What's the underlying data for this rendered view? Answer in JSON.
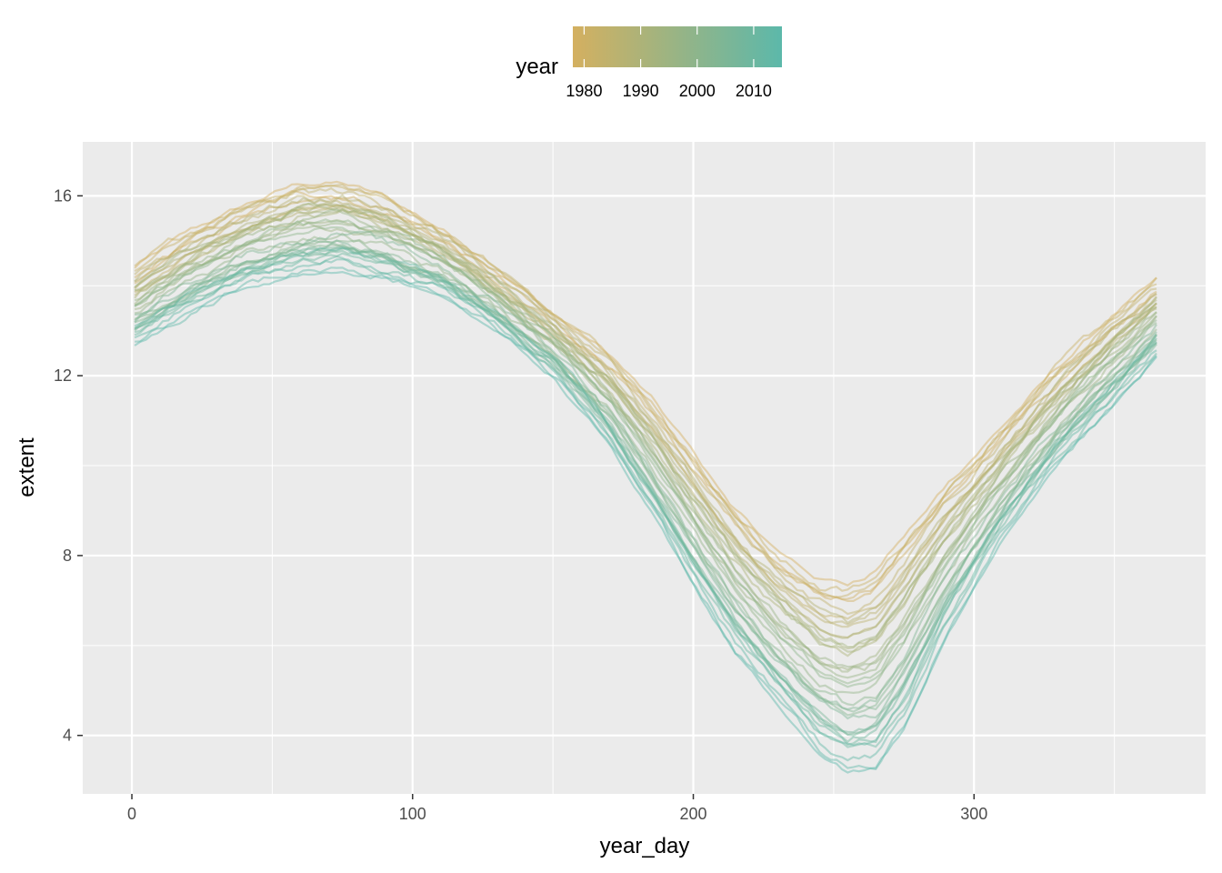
{
  "chart_data": {
    "type": "line",
    "title": "",
    "xlabel": "year_day",
    "ylabel": "extent",
    "xlim": [
      -17.5,
      382.5
    ],
    "ylim": [
      2.7,
      17.2
    ],
    "x_ticks": [
      0,
      100,
      200,
      300
    ],
    "x_tick_labels": [
      "0",
      "100",
      "200",
      "300"
    ],
    "y_ticks": [
      4,
      8,
      12,
      16
    ],
    "y_tick_labels": [
      "4",
      "8",
      "12",
      "16"
    ],
    "grid": true,
    "background": "#ebebeb",
    "line_alpha": 0.45,
    "legend": {
      "title": "year",
      "position": "top",
      "type": "colorbar",
      "range": [
        1978,
        2015
      ],
      "ticks": [
        1980,
        1990,
        2000,
        2010
      ],
      "tick_labels": [
        "1980",
        "1990",
        "2000",
        "2010"
      ],
      "low_color": "#d4b060",
      "high_color": "#5cb8aa"
    },
    "year_range": [
      1978,
      2015
    ],
    "x_range": [
      1,
      365
    ],
    "approximate_profile": {
      "year_day": [
        1,
        20,
        40,
        60,
        75,
        90,
        110,
        130,
        150,
        170,
        185,
        200,
        215,
        230,
        245,
        255,
        265,
        275,
        290,
        310,
        330,
        350,
        365
      ],
      "extent_1980": [
        14.3,
        15.1,
        15.7,
        16.2,
        16.2,
        15.9,
        15.2,
        14.3,
        13.3,
        12.4,
        11.4,
        10.2,
        9.0,
        8.0,
        7.4,
        7.3,
        7.6,
        8.4,
        9.5,
        10.8,
        12.1,
        13.3,
        14.0
      ],
      "extent_2012": [
        12.9,
        13.6,
        14.2,
        14.5,
        14.6,
        14.4,
        14.0,
        13.2,
        12.2,
        10.7,
        9.2,
        7.6,
        6.1,
        5.0,
        3.9,
        3.5,
        3.6,
        4.5,
        6.5,
        8.6,
        10.3,
        11.6,
        12.6
      ]
    }
  }
}
